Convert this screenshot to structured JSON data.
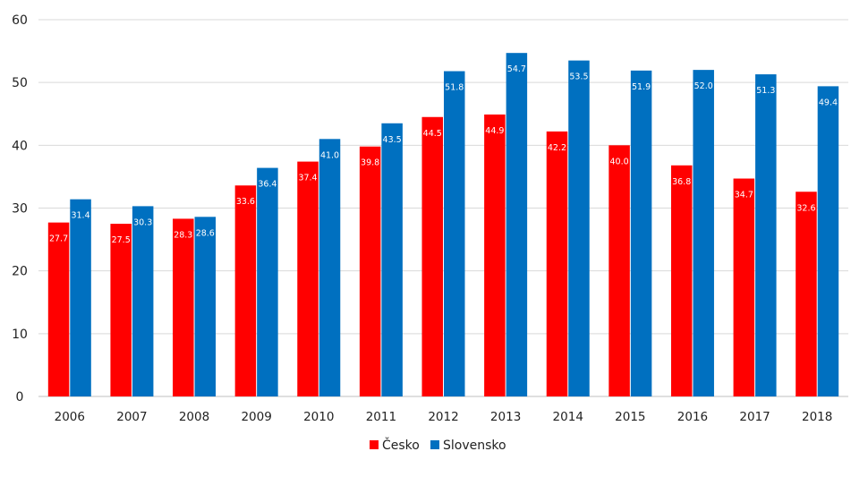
{
  "chart_data": {
    "type": "bar",
    "title": "",
    "xlabel": "",
    "ylabel": "",
    "ylim": [
      0,
      60
    ],
    "yticks": [
      0,
      10,
      20,
      30,
      40,
      50,
      60
    ],
    "grid": true,
    "legend_position": "bottom",
    "categories": [
      "2006",
      "2007",
      "2008",
      "2009",
      "2010",
      "2011",
      "2012",
      "2013",
      "2014",
      "2015",
      "2016",
      "2017",
      "2018"
    ],
    "series": [
      {
        "name": "Česko",
        "color": "#ff0000",
        "values": [
          27.7,
          27.5,
          28.3,
          33.6,
          37.4,
          39.8,
          44.5,
          44.9,
          42.2,
          40.0,
          36.8,
          34.7,
          32.6
        ],
        "labels": [
          "27.7",
          "27.5",
          "28.3",
          "33.6",
          "37.4",
          "39.8",
          "44.5",
          "44.9",
          "42.2",
          "40.0",
          "36.8",
          "34.7",
          "32.6"
        ]
      },
      {
        "name": "Slovensko",
        "color": "#0070c0",
        "values": [
          31.4,
          30.3,
          28.6,
          36.4,
          41.0,
          43.5,
          51.8,
          54.7,
          53.5,
          51.9,
          52.0,
          51.3,
          49.4
        ],
        "labels": [
          "31.4",
          "30.3",
          "28.6",
          "36.4",
          "41.0",
          "43.5",
          "51.8",
          "54.7",
          "53.5",
          "51.9",
          "52.0",
          "51.3",
          "49.4"
        ]
      }
    ]
  }
}
